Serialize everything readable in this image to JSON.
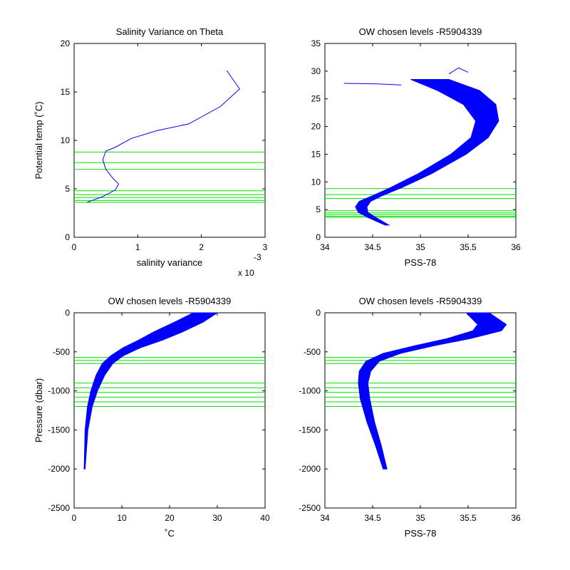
{
  "chart_data": [
    {
      "type": "line",
      "title": "Salinity Variance on Theta",
      "xlabel": "salinity variance",
      "ylabel": "Potential temp (˚C)",
      "x_multiplier_label": "x 10",
      "x_multiplier_exponent": "-3",
      "xlim": [
        0,
        3
      ],
      "ylim": [
        0,
        20
      ],
      "xticks": [
        "0",
        "1",
        "2",
        "3"
      ],
      "yticks": [
        "0",
        "5",
        "10",
        "15",
        "20"
      ],
      "series": [
        {
          "x": [
            0.2,
            0.45,
            0.65,
            0.7,
            0.62,
            0.5,
            0.45,
            0.5,
            0.65,
            0.9,
            1.3,
            1.8,
            2.3,
            2.6,
            2.4
          ],
          "y": [
            3.6,
            4.2,
            4.9,
            5.5,
            6.0,
            7.0,
            8.0,
            8.9,
            9.3,
            10.2,
            11.0,
            11.7,
            13.5,
            15.3,
            17.2
          ]
        }
      ],
      "levels_y": [
        3.6,
        3.8,
        4.1,
        4.4,
        4.8,
        7.0,
        7.7,
        8.8
      ]
    },
    {
      "type": "line",
      "title": "OW chosen levels -R5904339",
      "xlabel": "PSS-78",
      "ylabel": "",
      "xlim": [
        34,
        36
      ],
      "ylim": [
        0,
        35
      ],
      "xticks": [
        "34",
        "34.5",
        "35",
        "35.5",
        "36"
      ],
      "yticks": [
        "0",
        "5",
        "10",
        "15",
        "20",
        "25",
        "30",
        "35"
      ],
      "band": {
        "center_x": [
          34.65,
          34.5,
          34.4,
          34.38,
          34.42,
          34.55,
          34.75,
          35.05,
          35.4,
          35.62,
          35.7,
          35.62,
          35.4,
          35.1
        ],
        "y": [
          2.2,
          3.5,
          4.5,
          5.5,
          6.5,
          7.5,
          9.0,
          11.5,
          15.0,
          18.0,
          21.0,
          24.0,
          26.5,
          28.5
        ],
        "half_width": [
          0.02,
          0.04,
          0.05,
          0.06,
          0.06,
          0.05,
          0.06,
          0.07,
          0.08,
          0.09,
          0.12,
          0.17,
          0.22,
          0.2
        ]
      },
      "outliers": [
        {
          "x": [
            34.2,
            34.55,
            34.8
          ],
          "y": [
            27.8,
            27.7,
            27.5
          ]
        },
        {
          "x": [
            35.3,
            35.4,
            35.5
          ],
          "y": [
            29.5,
            30.6,
            29.8
          ]
        }
      ],
      "levels_y": [
        3.6,
        3.8,
        4.1,
        4.4,
        4.8,
        7.0,
        7.7,
        8.8
      ]
    },
    {
      "type": "line",
      "title": "OW chosen levels -R5904339",
      "xlabel": "˚C",
      "ylabel": "Pressure (dbar)",
      "xlim": [
        0,
        40
      ],
      "ylim": [
        -2500,
        0
      ],
      "xticks": [
        "0",
        "10",
        "20",
        "30",
        "40"
      ],
      "yticks": [
        "-2500",
        "-2000",
        "-1500",
        "-1000",
        "-500",
        "0"
      ],
      "band": {
        "center_x": [
          2.2,
          2.6,
          3.3,
          4.2,
          5.5,
          7.0,
          9.0,
          12.0,
          16.0,
          19.5,
          24.0,
          27.5
        ],
        "y": [
          -2000,
          -1500,
          -1200,
          -1000,
          -800,
          -650,
          -550,
          -450,
          -350,
          -250,
          -120,
          0
        ],
        "half_width": [
          0.1,
          0.3,
          0.5,
          0.7,
          0.9,
          1.1,
          1.3,
          1.8,
          2.5,
          3.0,
          3.0,
          2.5
        ]
      },
      "levels_y": [
        -570,
        -610,
        -650,
        -900,
        -960,
        -1020,
        -1080,
        -1140,
        -1200
      ]
    },
    {
      "type": "line",
      "title": "OW chosen levels -R5904339",
      "xlabel": "PSS-78",
      "ylabel": "",
      "xlim": [
        34,
        36
      ],
      "ylim": [
        -2500,
        0
      ],
      "xticks": [
        "34",
        "34.5",
        "35",
        "35.5",
        "36"
      ],
      "yticks": [
        "-2500",
        "-2000",
        "-1500",
        "-1000",
        "-500",
        "0"
      ],
      "band": {
        "center_x": [
          34.63,
          34.56,
          34.48,
          34.42,
          34.4,
          34.42,
          34.5,
          34.7,
          35.05,
          35.4,
          35.7,
          35.75,
          35.6
        ],
        "y": [
          -2000,
          -1700,
          -1400,
          -1100,
          -900,
          -750,
          -620,
          -520,
          -420,
          -330,
          -230,
          -150,
          0
        ],
        "half_width": [
          0.02,
          0.03,
          0.04,
          0.05,
          0.05,
          0.06,
          0.07,
          0.09,
          0.1,
          0.12,
          0.15,
          0.15,
          0.12
        ]
      },
      "levels_y": [
        -570,
        -610,
        -650,
        -900,
        -960,
        -1020,
        -1080,
        -1140,
        -1200
      ]
    }
  ]
}
